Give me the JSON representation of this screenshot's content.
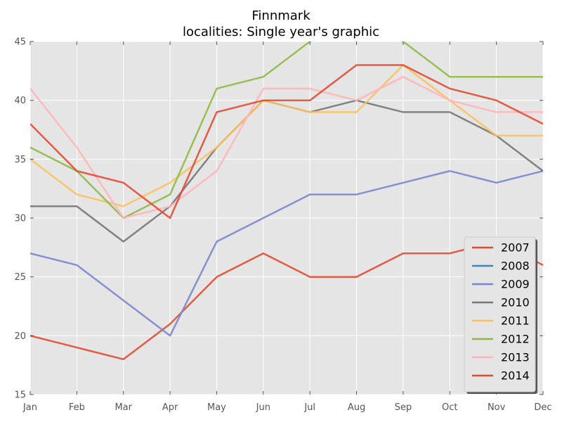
{
  "chart_data": {
    "type": "line",
    "title": [
      "Finnmark",
      "localities: Single year's graphic"
    ],
    "xlabel": "",
    "ylabel": "",
    "categories": [
      "Jan",
      "Feb",
      "Mar",
      "Apr",
      "May",
      "Jun",
      "Jul",
      "Aug",
      "Sep",
      "Oct",
      "Nov",
      "Dec"
    ],
    "ylim": [
      15,
      45
    ],
    "yticks": [
      15,
      20,
      25,
      30,
      35,
      40,
      45
    ],
    "grid": true,
    "legend_position": "lower-right",
    "series": [
      {
        "name": "2007",
        "color": "#E24A33",
        "values": [
          20,
          19,
          18,
          21,
          25,
          27,
          25,
          25,
          27,
          27,
          28,
          26
        ]
      },
      {
        "name": "2008",
        "color": "#348ABD",
        "values": [
          null,
          null,
          null,
          null,
          null,
          null,
          null,
          null,
          null,
          null,
          null,
          null
        ]
      },
      {
        "name": "2009",
        "color": "#7A86D0",
        "values": [
          27,
          26,
          23,
          20,
          28,
          30,
          32,
          32,
          33,
          34,
          33,
          34
        ]
      },
      {
        "name": "2010",
        "color": "#777777",
        "values": [
          31,
          31,
          28,
          31,
          36,
          40,
          39,
          40,
          39,
          39,
          37,
          34
        ]
      },
      {
        "name": "2011",
        "color": "#FBC15E",
        "values": [
          35,
          32,
          31,
          33,
          36,
          40,
          39,
          39,
          43,
          40,
          37,
          37
        ]
      },
      {
        "name": "2012",
        "color": "#8EBA42",
        "values": [
          36,
          34,
          30,
          32,
          41,
          42,
          45,
          47,
          45,
          42,
          42,
          42
        ]
      },
      {
        "name": "2013",
        "color": "#FFB5B8",
        "values": [
          41,
          36,
          30,
          31,
          34,
          41,
          41,
          40,
          42,
          40,
          39,
          39
        ]
      },
      {
        "name": "2014",
        "color": "#E24A33",
        "values": [
          38,
          34,
          33,
          30,
          39,
          40,
          40,
          43,
          43,
          41,
          40,
          38
        ]
      }
    ]
  }
}
